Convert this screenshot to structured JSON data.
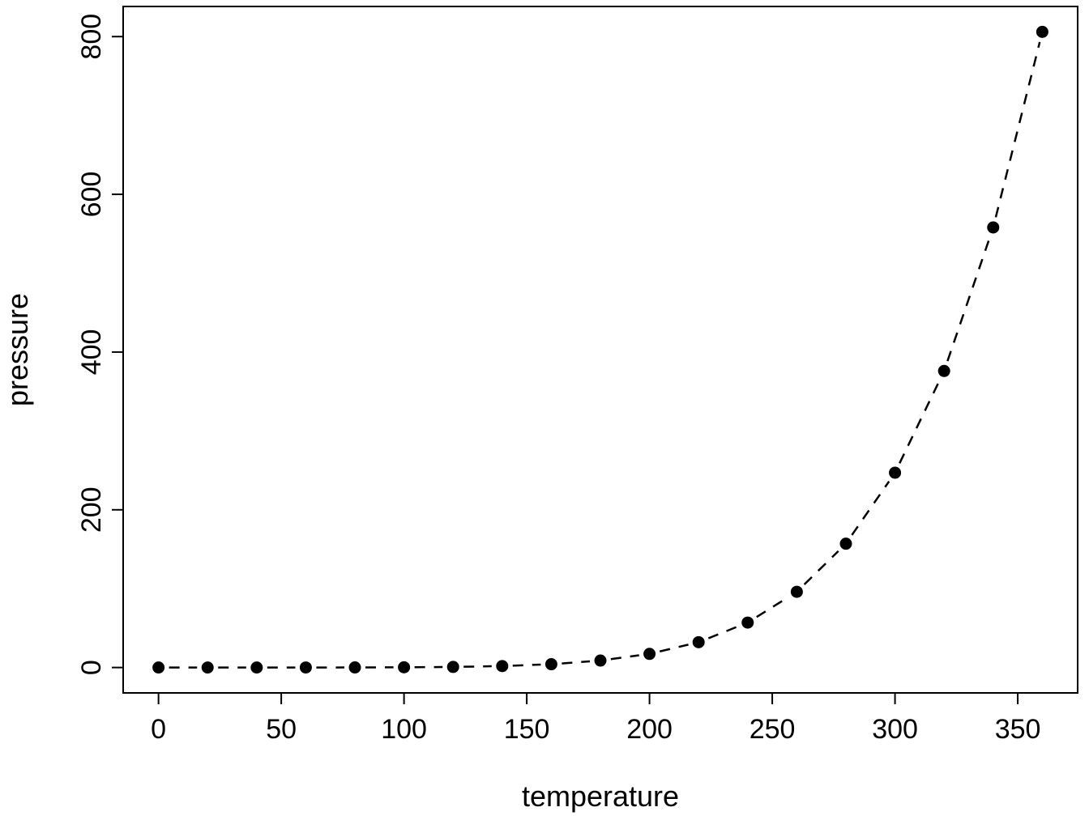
{
  "chart_data": {
    "type": "scatter",
    "title": "",
    "xlabel": "temperature",
    "ylabel": "pressure",
    "x": [
      0,
      20,
      40,
      60,
      80,
      100,
      120,
      140,
      160,
      180,
      200,
      220,
      240,
      260,
      280,
      300,
      320,
      340,
      360
    ],
    "y": [
      0.0002,
      0.0012,
      0.006,
      0.03,
      0.09,
      0.27,
      0.75,
      1.85,
      4.2,
      8.8,
      17.3,
      32.1,
      57.0,
      96.0,
      157.0,
      247.0,
      376.0,
      558.0,
      806.0
    ],
    "xlim": [
      -14.4,
      374.4
    ],
    "ylim": [
      -32.2,
      838.2
    ],
    "xticks": [
      0,
      50,
      100,
      150,
      200,
      250,
      300,
      350
    ],
    "yticks": [
      0,
      200,
      400,
      600,
      800
    ],
    "marker": "filled-circle",
    "marker_color": "#000000",
    "line_style": "dashed",
    "line_color": "#000000",
    "grid": false,
    "legend": null,
    "background": "#ffffff"
  }
}
